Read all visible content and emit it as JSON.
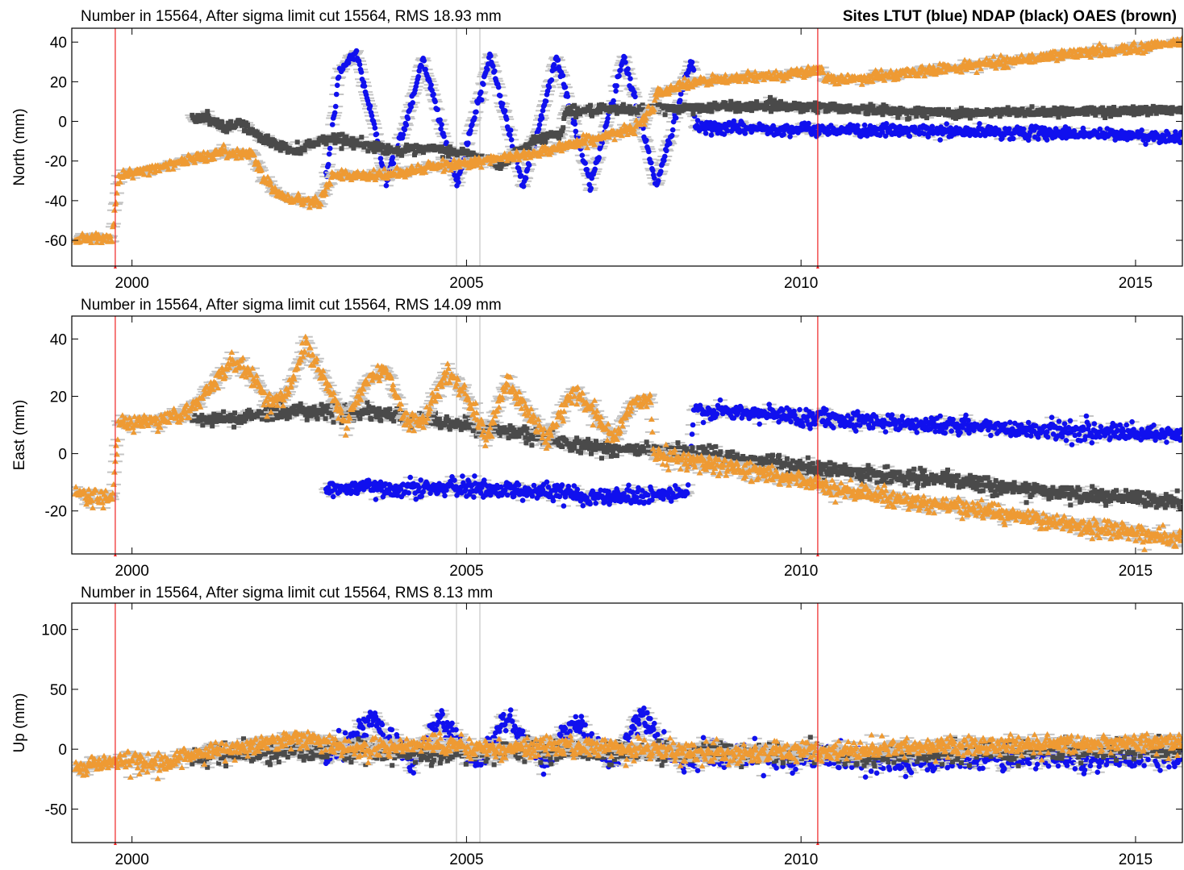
{
  "figure_title": "Sites LTUT (blue) NDAP (black) OAES (brown)",
  "colors": {
    "LTUT": "#1010ee",
    "NDAP": "#4a4a4a",
    "OAES": "#ee9a33",
    "errorbar": "#c4c4c4",
    "event_line": "#ee2222",
    "gap_line": "#bbbbbb",
    "axes": "#000000"
  },
  "x_axis": {
    "range": [
      1999.1,
      2015.7
    ],
    "ticks": [
      2000,
      2005,
      2010,
      2015
    ],
    "tick_labels": [
      "2000",
      "2005",
      "2010",
      "2015"
    ]
  },
  "event_lines": [
    1999.75,
    2010.25
  ],
  "gap_lines": [
    2004.85,
    2005.2
  ],
  "chart_data": [
    {
      "type": "scatter",
      "component": "north",
      "header": "Number in  15564, After sigma limit cut  15564, RMS  18.93 mm",
      "ylabel": "North (mm)",
      "ylim": [
        -73,
        47
      ],
      "yticks": [
        -60,
        -40,
        -20,
        0,
        20,
        40
      ],
      "ytick_labels": [
        "-60",
        "-40",
        "-20",
        "0",
        "20",
        "40"
      ],
      "series": [
        {
          "key": "LTUT",
          "marker": "circle",
          "noise": 1.5,
          "points": [
            [
              2002.9,
              -30
            ],
            [
              2003.1,
              25
            ],
            [
              2003.35,
              35
            ],
            [
              2003.6,
              0
            ],
            [
              2003.8,
              -30
            ],
            [
              2004.1,
              0
            ],
            [
              2004.35,
              32
            ],
            [
              2004.6,
              0
            ],
            [
              2004.85,
              -32
            ],
            [
              2005.1,
              0
            ],
            [
              2005.35,
              33
            ],
            [
              2005.6,
              0
            ],
            [
              2005.85,
              -33
            ],
            [
              2006.1,
              0
            ],
            [
              2006.35,
              33
            ],
            [
              2006.6,
              0
            ],
            [
              2006.85,
              -33
            ],
            [
              2007.1,
              0
            ],
            [
              2007.35,
              33
            ],
            [
              2007.6,
              0
            ],
            [
              2007.85,
              -33
            ],
            [
              2008.1,
              0
            ],
            [
              2008.35,
              30
            ],
            [
              2008.4,
              26
            ],
            [
              2008.41,
              -3
            ],
            [
              2010.0,
              -4
            ],
            [
              2012.0,
              -5
            ],
            [
              2014.0,
              -6
            ],
            [
              2015.7,
              -8
            ]
          ]
        },
        {
          "key": "NDAP",
          "marker": "square",
          "noise": 1.2,
          "points": [
            [
              2000.9,
              2
            ],
            [
              2001.1,
              2
            ],
            [
              2001.4,
              -4
            ],
            [
              2001.6,
              0
            ],
            [
              2001.9,
              -8
            ],
            [
              2002.2,
              -12
            ],
            [
              2002.4,
              -15
            ],
            [
              2002.7,
              -11
            ],
            [
              2003.0,
              -8
            ],
            [
              2003.5,
              -12
            ],
            [
              2004.0,
              -15
            ],
            [
              2004.5,
              -14
            ],
            [
              2005.0,
              -16
            ],
            [
              2005.5,
              -22
            ],
            [
              2006.0,
              -10
            ],
            [
              2006.45,
              -5
            ],
            [
              2006.46,
              5
            ],
            [
              2007.5,
              6
            ],
            [
              2008.5,
              7
            ],
            [
              2009.5,
              8
            ],
            [
              2010.5,
              7
            ],
            [
              2011.5,
              5
            ],
            [
              2012.5,
              4
            ],
            [
              2013.5,
              5
            ],
            [
              2014.5,
              5
            ],
            [
              2015.7,
              6
            ]
          ]
        },
        {
          "key": "OAES",
          "marker": "triangle",
          "noise": 1.3,
          "points": [
            [
              1999.15,
              -59
            ],
            [
              1999.7,
              -58
            ],
            [
              1999.8,
              -28
            ],
            [
              2000.5,
              -22
            ],
            [
              2001.3,
              -16
            ],
            [
              2001.8,
              -16
            ],
            [
              2002.0,
              -30
            ],
            [
              2002.2,
              -37
            ],
            [
              2002.5,
              -40
            ],
            [
              2002.8,
              -40
            ],
            [
              2003.0,
              -27
            ],
            [
              2003.5,
              -28
            ],
            [
              2004.0,
              -26
            ],
            [
              2004.5,
              -23
            ],
            [
              2005.0,
              -21
            ],
            [
              2005.5,
              -19
            ],
            [
              2006.0,
              -16
            ],
            [
              2006.5,
              -12
            ],
            [
              2007.0,
              -8
            ],
            [
              2007.5,
              -4
            ],
            [
              2007.8,
              8
            ],
            [
              2007.85,
              15
            ],
            [
              2008.5,
              20
            ],
            [
              2009.5,
              23
            ],
            [
              2010.3,
              26
            ],
            [
              2010.35,
              21
            ],
            [
              2011.0,
              22
            ],
            [
              2012.0,
              26
            ],
            [
              2013.0,
              30
            ],
            [
              2014.0,
              34
            ],
            [
              2015.0,
              37
            ],
            [
              2015.7,
              40
            ]
          ]
        }
      ]
    },
    {
      "type": "scatter",
      "component": "east",
      "header": "Number in  15564, After sigma limit cut  15564, RMS  14.09 mm",
      "ylabel": "East  (mm)",
      "ylim": [
        -35,
        48
      ],
      "yticks": [
        -20,
        0,
        20,
        40
      ],
      "ytick_labels": [
        "-20",
        "0",
        "20",
        "40"
      ],
      "series": [
        {
          "key": "LTUT",
          "marker": "circle",
          "noise": 1.5,
          "points": [
            [
              2002.9,
              -12
            ],
            [
              2005.0,
              -12
            ],
            [
              2006.0,
              -13
            ],
            [
              2007.0,
              -15
            ],
            [
              2008.3,
              -14
            ],
            [
              2008.4,
              15
            ],
            [
              2010.0,
              13
            ],
            [
              2012.0,
              10
            ],
            [
              2014.0,
              8
            ],
            [
              2015.7,
              6
            ]
          ]
        },
        {
          "key": "NDAP",
          "marker": "square",
          "noise": 1.3,
          "points": [
            [
              2000.9,
              12
            ],
            [
              2001.5,
              12
            ],
            [
              2002.0,
              14
            ],
            [
              2002.5,
              15
            ],
            [
              2003.0,
              15
            ],
            [
              2004.0,
              13
            ],
            [
              2005.0,
              10
            ],
            [
              2005.5,
              8
            ],
            [
              2006.0,
              6
            ],
            [
              2006.5,
              4
            ],
            [
              2007.0,
              2
            ],
            [
              2007.8,
              1
            ],
            [
              2008.5,
              0
            ],
            [
              2009.5,
              -3
            ],
            [
              2010.5,
              -6
            ],
            [
              2011.5,
              -8
            ],
            [
              2012.5,
              -10
            ],
            [
              2013.5,
              -13
            ],
            [
              2014.5,
              -15
            ],
            [
              2015.7,
              -17
            ]
          ]
        },
        {
          "key": "OAES",
          "marker": "triangle",
          "noise": 1.5,
          "points": [
            [
              1999.15,
              -14
            ],
            [
              1999.7,
              -16
            ],
            [
              1999.8,
              10
            ],
            [
              2000.5,
              12
            ],
            [
              2000.9,
              15
            ],
            [
              2001.1,
              22
            ],
            [
              2001.5,
              32
            ],
            [
              2001.8,
              28
            ],
            [
              2002.0,
              18
            ],
            [
              2002.3,
              20
            ],
            [
              2002.6,
              38
            ],
            [
              2002.9,
              25
            ],
            [
              2003.2,
              10
            ],
            [
              2003.5,
              25
            ],
            [
              2003.8,
              30
            ],
            [
              2004.1,
              10
            ],
            [
              2004.4,
              12
            ],
            [
              2004.7,
              30
            ],
            [
              2005.0,
              20
            ],
            [
              2005.3,
              5
            ],
            [
              2005.6,
              25
            ],
            [
              2005.9,
              15
            ],
            [
              2006.2,
              5
            ],
            [
              2006.6,
              22
            ],
            [
              2006.9,
              15
            ],
            [
              2007.2,
              5
            ],
            [
              2007.5,
              18
            ],
            [
              2007.75,
              18
            ],
            [
              2007.8,
              0
            ],
            [
              2008.5,
              -3
            ],
            [
              2009.5,
              -7
            ],
            [
              2010.5,
              -12
            ],
            [
              2011.5,
              -16
            ],
            [
              2012.5,
              -19
            ],
            [
              2013.5,
              -23
            ],
            [
              2014.5,
              -26
            ],
            [
              2015.7,
              -30
            ]
          ]
        }
      ]
    },
    {
      "type": "scatter",
      "component": "up",
      "header": "Number in  15564, After sigma limit cut  15564, RMS   8.13 mm",
      "ylabel": "Up  (mm)",
      "ylim": [
        -78,
        122
      ],
      "yticks": [
        -50,
        0,
        50,
        100
      ],
      "ytick_labels": [
        "-50",
        "0",
        "50",
        "100"
      ],
      "series": [
        {
          "key": "LTUT",
          "marker": "circle",
          "noise": 5,
          "points": [
            [
              2002.9,
              -8
            ],
            [
              2003.2,
              5
            ],
            [
              2003.6,
              25
            ],
            [
              2003.9,
              5
            ],
            [
              2004.2,
              -12
            ],
            [
              2004.6,
              25
            ],
            [
              2004.9,
              5
            ],
            [
              2005.2,
              -12
            ],
            [
              2005.6,
              30
            ],
            [
              2005.9,
              5
            ],
            [
              2006.2,
              -12
            ],
            [
              2006.6,
              25
            ],
            [
              2006.9,
              5
            ],
            [
              2007.2,
              -12
            ],
            [
              2007.6,
              28
            ],
            [
              2007.9,
              5
            ],
            [
              2008.2,
              -8
            ],
            [
              2008.5,
              -5
            ],
            [
              2009.5,
              -8
            ],
            [
              2010.5,
              -6
            ],
            [
              2011.5,
              -10
            ],
            [
              2012.5,
              -8
            ],
            [
              2013.5,
              -6
            ],
            [
              2014.5,
              -8
            ],
            [
              2015.7,
              -4
            ]
          ]
        },
        {
          "key": "NDAP",
          "marker": "square",
          "noise": 4,
          "points": [
            [
              2000.9,
              -5
            ],
            [
              2002.0,
              -3
            ],
            [
              2003.0,
              0
            ],
            [
              2004.0,
              -2
            ],
            [
              2005.0,
              -3
            ],
            [
              2006.0,
              0
            ],
            [
              2007.0,
              -2
            ],
            [
              2008.0,
              -3
            ],
            [
              2009.0,
              -4
            ],
            [
              2010.0,
              -3
            ],
            [
              2011.0,
              -5
            ],
            [
              2012.0,
              -3
            ],
            [
              2013.0,
              -2
            ],
            [
              2014.0,
              0
            ],
            [
              2015.7,
              2
            ]
          ]
        },
        {
          "key": "OAES",
          "marker": "triangle",
          "noise": 4,
          "points": [
            [
              1999.15,
              -15
            ],
            [
              1999.7,
              -10
            ],
            [
              2000.5,
              -12
            ],
            [
              2001.0,
              -2
            ],
            [
              2001.5,
              0
            ],
            [
              2002.0,
              5
            ],
            [
              2002.5,
              10
            ],
            [
              2003.0,
              3
            ],
            [
              2003.5,
              0
            ],
            [
              2004.0,
              2
            ],
            [
              2004.5,
              5
            ],
            [
              2005.0,
              2
            ],
            [
              2005.5,
              0
            ],
            [
              2006.0,
              3
            ],
            [
              2006.5,
              0
            ],
            [
              2007.0,
              2
            ],
            [
              2007.5,
              0
            ],
            [
              2008.0,
              -2
            ],
            [
              2009.0,
              -4
            ],
            [
              2010.0,
              -2
            ],
            [
              2011.0,
              0
            ],
            [
              2012.0,
              2
            ],
            [
              2013.0,
              3
            ],
            [
              2014.0,
              4
            ],
            [
              2015.7,
              6
            ]
          ]
        }
      ]
    }
  ]
}
